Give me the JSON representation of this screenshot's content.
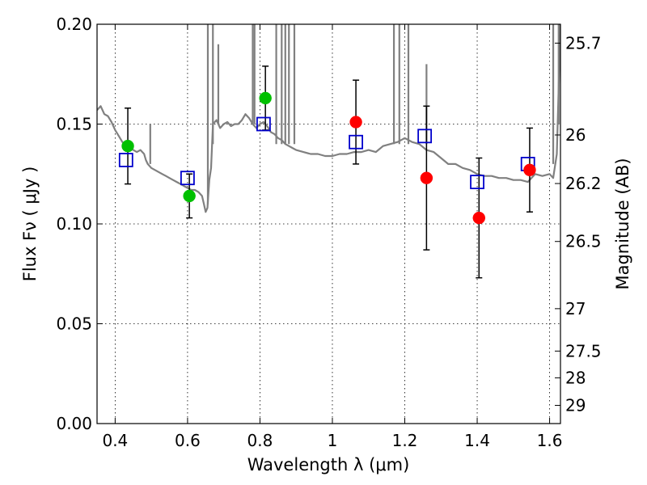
{
  "chart_data": {
    "type": "scatter",
    "title": "",
    "xlabel": "Wavelength  λ (μm)",
    "ylabel": "Flux  Fν  ( μJy )",
    "ylabel_right": "Magnitude (AB)",
    "xlim": [
      0.35,
      1.63
    ],
    "ylim": [
      0.0,
      0.2
    ],
    "grid": true,
    "x_ticks": [
      0.4,
      0.6,
      0.8,
      1.0,
      1.2,
      1.4,
      1.6
    ],
    "x_tick_labels": [
      "0.4",
      "0.6",
      "0.8",
      "1",
      "1.2",
      "1.4",
      "1.6"
    ],
    "y_ticks": [
      0.0,
      0.05,
      0.1,
      0.15,
      0.2
    ],
    "y_tick_labels": [
      "0.00",
      "0.05",
      "0.10",
      "0.15",
      "0.20"
    ],
    "right_ticks": [
      25.7,
      26,
      26.2,
      26.5,
      27,
      27.5,
      28,
      29
    ],
    "right_tick_labels": [
      "25.7",
      "26",
      "26.2",
      "26.5",
      "27",
      "27.5",
      "28",
      "29"
    ],
    "series": [
      {
        "type": "line",
        "color": "#808080",
        "x": [
          0.35,
          0.36,
          0.37,
          0.38,
          0.39,
          0.4,
          0.41,
          0.42,
          0.43,
          0.44,
          0.45,
          0.46,
          0.47,
          0.48,
          0.485,
          0.49,
          0.5,
          0.51,
          0.52,
          0.53,
          0.54,
          0.55,
          0.56,
          0.57,
          0.58,
          0.59,
          0.6,
          0.61,
          0.62,
          0.63,
          0.64,
          0.645,
          0.65,
          0.655,
          0.66,
          0.665,
          0.67,
          0.68,
          0.69,
          0.7,
          0.71,
          0.72,
          0.73,
          0.74,
          0.75,
          0.76,
          0.77,
          0.78,
          0.79,
          0.8,
          0.81,
          0.82,
          0.83,
          0.84,
          0.85,
          0.86,
          0.87,
          0.88,
          0.89,
          0.9,
          0.92,
          0.94,
          0.96,
          0.98,
          1.0,
          1.02,
          1.04,
          1.06,
          1.08,
          1.1,
          1.12,
          1.14,
          1.16,
          1.18,
          1.2,
          1.22,
          1.24,
          1.26,
          1.28,
          1.3,
          1.32,
          1.34,
          1.36,
          1.38,
          1.4,
          1.42,
          1.44,
          1.46,
          1.48,
          1.5,
          1.52,
          1.54,
          1.56,
          1.58,
          1.6,
          1.61,
          1.62,
          1.63
        ],
        "y": [
          0.157,
          0.159,
          0.155,
          0.154,
          0.151,
          0.147,
          0.144,
          0.141,
          0.139,
          0.138,
          0.137,
          0.136,
          0.137,
          0.135,
          0.132,
          0.13,
          0.128,
          0.127,
          0.126,
          0.125,
          0.124,
          0.123,
          0.122,
          0.121,
          0.12,
          0.119,
          0.118,
          0.117,
          0.117,
          0.116,
          0.114,
          0.11,
          0.106,
          0.108,
          0.122,
          0.128,
          0.15,
          0.152,
          0.148,
          0.15,
          0.151,
          0.149,
          0.15,
          0.15,
          0.152,
          0.155,
          0.153,
          0.15,
          0.148,
          0.15,
          0.151,
          0.149,
          0.146,
          0.145,
          0.143,
          0.142,
          0.14,
          0.139,
          0.138,
          0.137,
          0.136,
          0.135,
          0.135,
          0.134,
          0.134,
          0.135,
          0.135,
          0.136,
          0.136,
          0.137,
          0.136,
          0.139,
          0.14,
          0.141,
          0.143,
          0.141,
          0.14,
          0.137,
          0.136,
          0.133,
          0.13,
          0.13,
          0.128,
          0.127,
          0.125,
          0.124,
          0.124,
          0.123,
          0.123,
          0.122,
          0.122,
          0.121,
          0.125,
          0.124,
          0.125,
          0.123,
          0.135,
          0.2
        ]
      },
      {
        "type": "scatter",
        "name": "",
        "marker": "circle",
        "color": "#00c000",
        "x": [
          0.435,
          0.605,
          0.815
        ],
        "y": [
          0.139,
          0.114,
          0.163
        ],
        "yerr": [
          0.019,
          0.011,
          0.016
        ]
      },
      {
        "type": "scatter",
        "name": "",
        "marker": "circle",
        "color": "#ff0000",
        "x": [
          1.065,
          1.26,
          1.405,
          1.545
        ],
        "y": [
          0.151,
          0.123,
          0.103,
          0.127
        ],
        "yerr": [
          0.021,
          0.036,
          0.03,
          0.021
        ]
      },
      {
        "type": "scatter",
        "name": "",
        "marker": "square",
        "color": "#0000cc",
        "x": [
          0.43,
          0.6,
          0.81,
          1.065,
          1.255,
          1.4,
          1.54
        ],
        "y": [
          0.132,
          0.123,
          0.15,
          0.141,
          0.144,
          0.121,
          0.13
        ]
      }
    ]
  }
}
